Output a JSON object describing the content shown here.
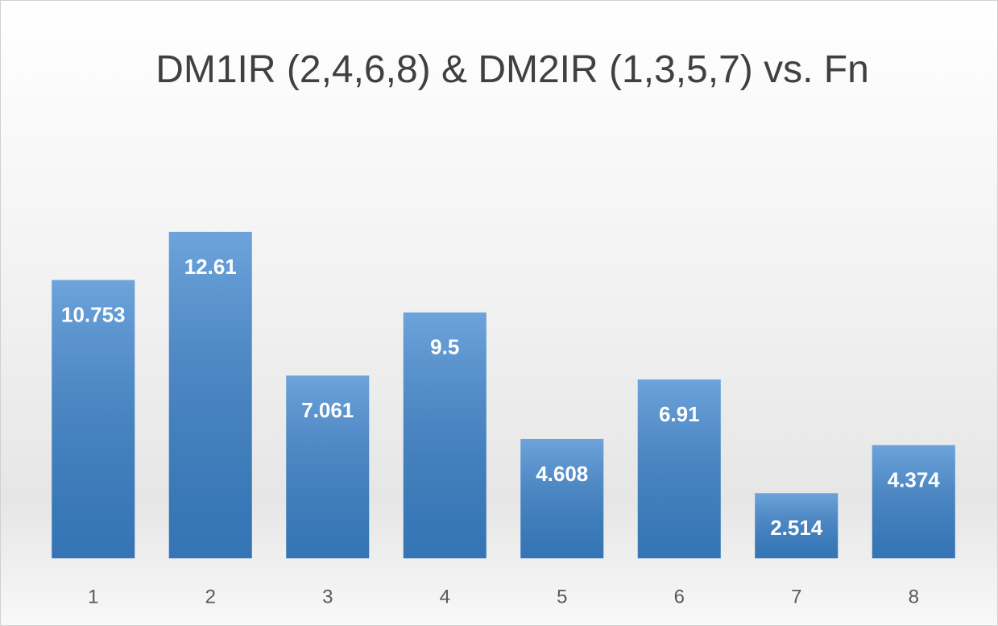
{
  "chart_data": {
    "type": "bar",
    "title": "DM1IR (2,4,6,8) & DM2IR (1,3,5,7) vs. Fn",
    "categories": [
      "1",
      "2",
      "3",
      "4",
      "5",
      "6",
      "7",
      "8"
    ],
    "values": [
      10.753,
      12.61,
      7.061,
      9.5,
      4.608,
      6.91,
      2.514,
      4.374
    ],
    "color": "#3c85cf",
    "ylim": [
      0,
      16
    ],
    "grid": false
  }
}
